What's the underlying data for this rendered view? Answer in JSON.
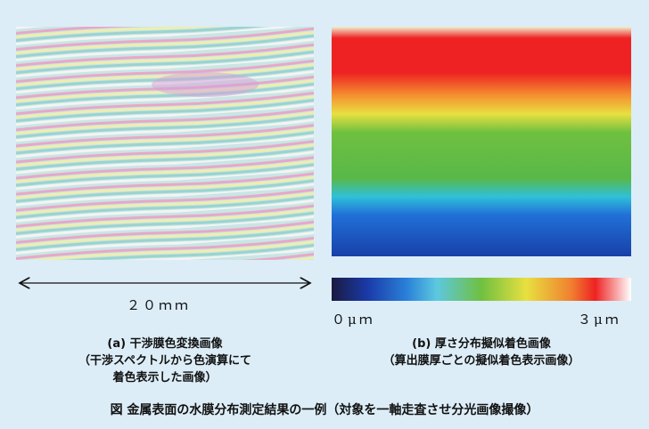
{
  "figure": {
    "scale_label": "２０ｍｍ",
    "colorbar": {
      "min_label": "０μｍ",
      "max_label": "３μｍ"
    },
    "panel_a": {
      "title": "(a) 干渉膜色変換画像",
      "lines": [
        "（干渉スペクトルから色演算にて",
        "着色表示した画像）"
      ]
    },
    "panel_b": {
      "title": "(b) 厚さ分布擬似着色画像",
      "lines": [
        "（算出膜厚ごとの擬似着色表示画像）"
      ]
    },
    "caption": "図 金属表面の水膜分布測定結果の一例（対象を一軸走査させ分光画像撮像）"
  }
}
